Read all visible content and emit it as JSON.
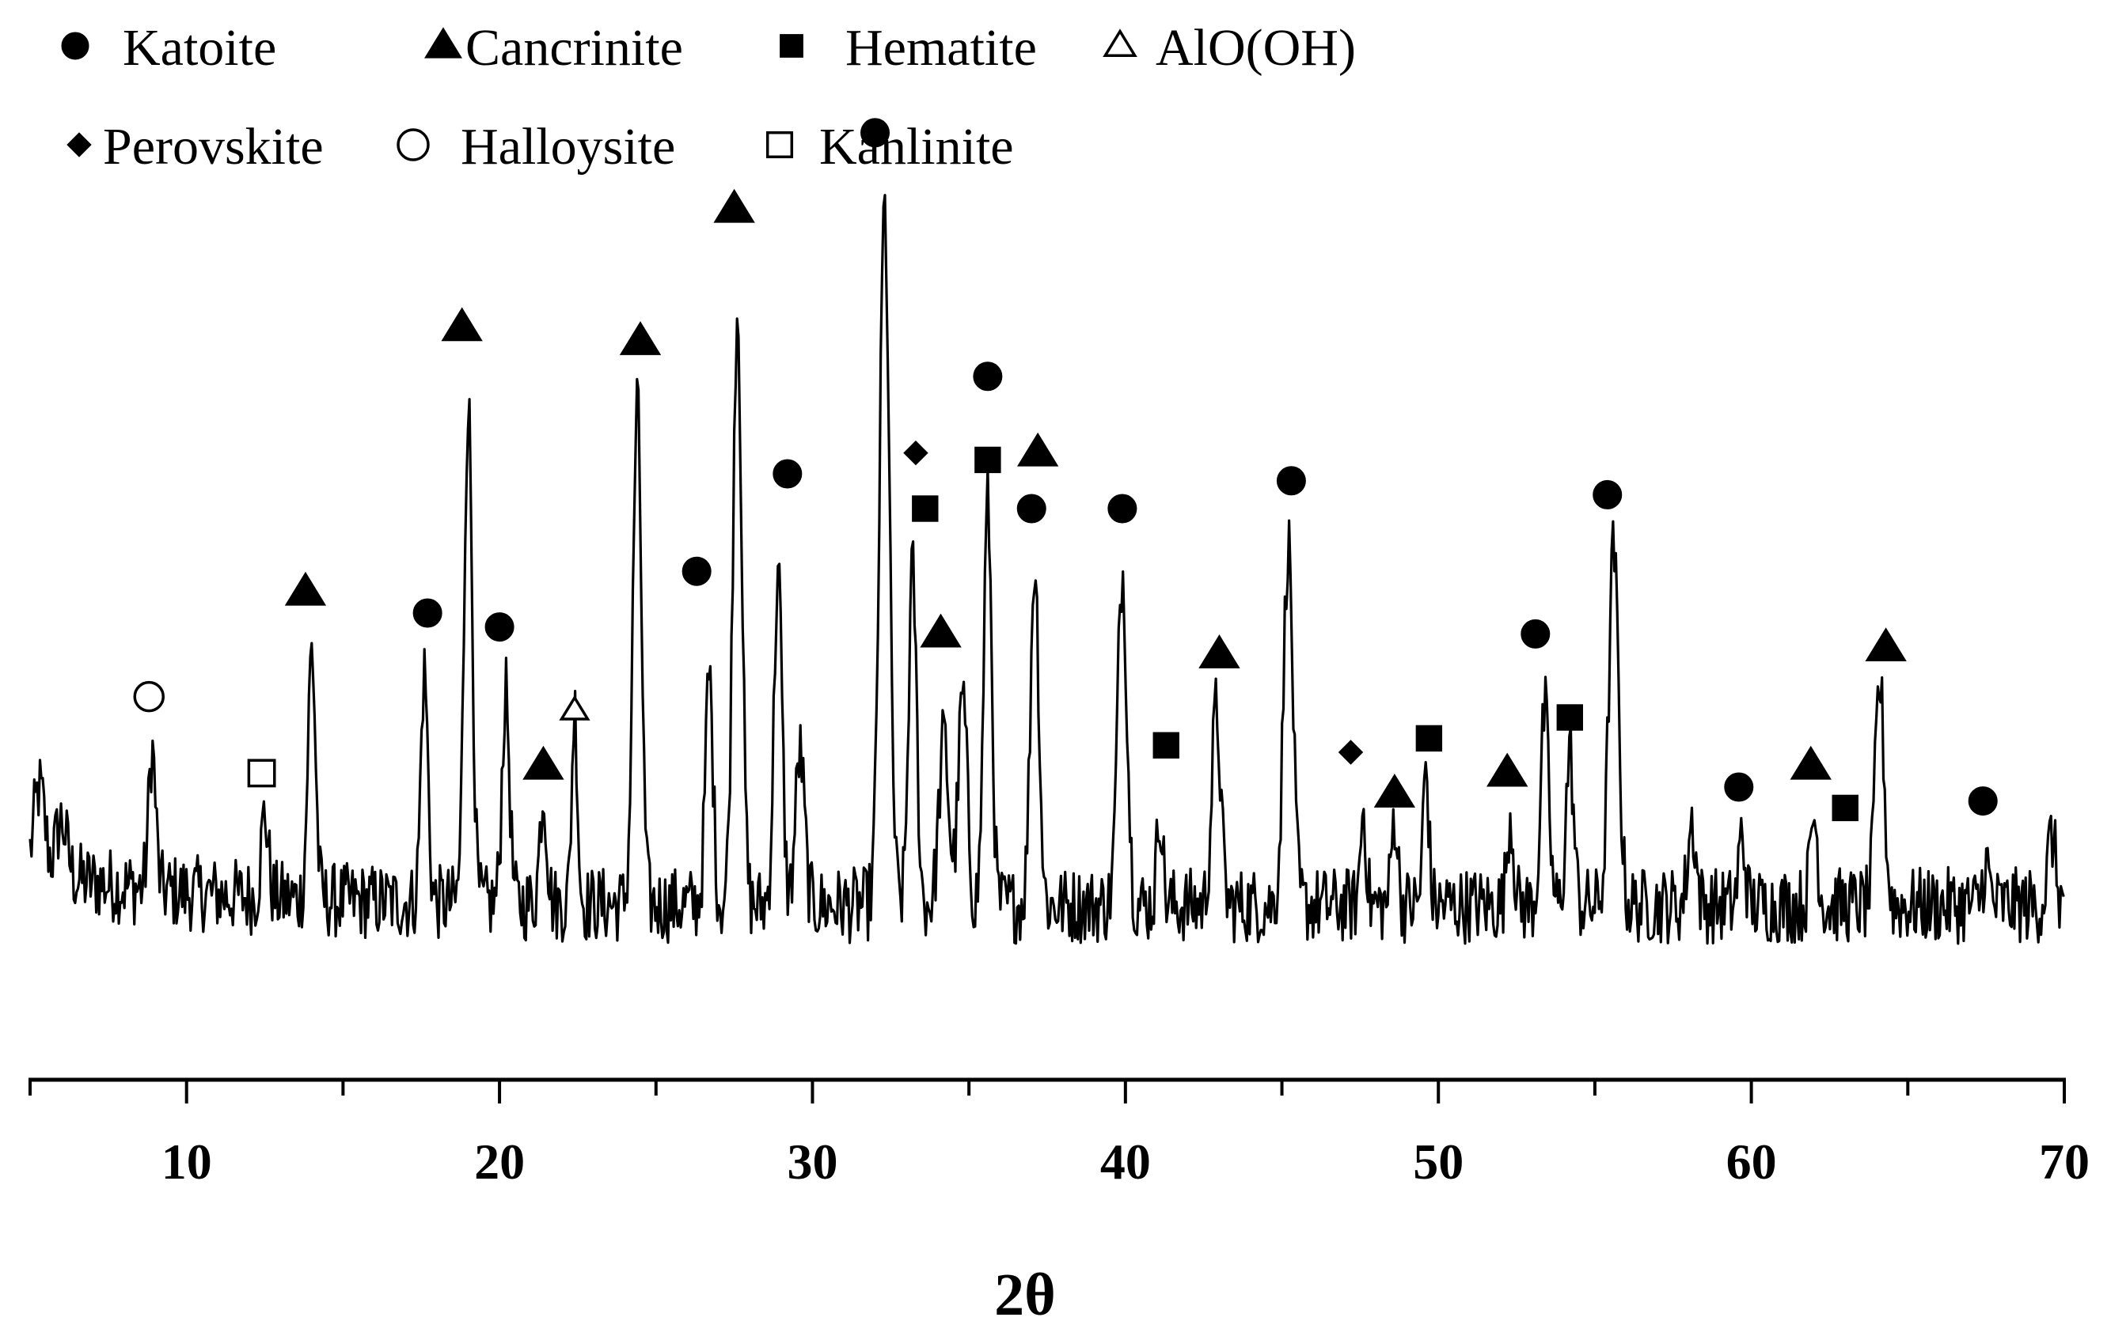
{
  "chart_data": {
    "type": "line",
    "title": "",
    "xlabel": "2θ",
    "ylabel": "",
    "xlim": [
      5,
      70
    ],
    "xticks_major": [
      10,
      20,
      30,
      40,
      50,
      60,
      70
    ],
    "xticks_minor": [
      5,
      15,
      25,
      35,
      45,
      55,
      65
    ],
    "y_axis_shown": false,
    "grid": false,
    "legend_position": "top-left",
    "legend": [
      {
        "name": "Katoite",
        "marker": "filled-circle"
      },
      {
        "name": "Cancrinite",
        "marker": "filled-triangle"
      },
      {
        "name": "Hematite",
        "marker": "filled-square"
      },
      {
        "name": "AlO(OH)",
        "marker": "open-triangle"
      },
      {
        "name": "Perovskite",
        "marker": "filled-diamond"
      },
      {
        "name": "Halloysite",
        "marker": "open-circle"
      },
      {
        "name": "Kanlinite",
        "marker": "open-square"
      }
    ],
    "baseline": 0.08,
    "noise_amplitude": 0.055,
    "peaks": [
      {
        "x": 5.3,
        "h": 0.12,
        "w": 0.25
      },
      {
        "x": 6.0,
        "h": 0.08,
        "w": 0.25
      },
      {
        "x": 8.9,
        "h": 0.2,
        "w": 0.16
      },
      {
        "x": 12.5,
        "h": 0.12,
        "w": 0.16
      },
      {
        "x": 14.0,
        "h": 0.36,
        "w": 0.17
      },
      {
        "x": 17.6,
        "h": 0.33,
        "w": 0.16
      },
      {
        "x": 19.0,
        "h": 0.72,
        "w": 0.18
      },
      {
        "x": 20.2,
        "h": 0.3,
        "w": 0.17
      },
      {
        "x": 21.4,
        "h": 0.16,
        "w": 0.16
      },
      {
        "x": 22.4,
        "h": 0.28,
        "w": 0.13
      },
      {
        "x": 24.4,
        "h": 0.72,
        "w": 0.19
      },
      {
        "x": 26.7,
        "h": 0.33,
        "w": 0.17
      },
      {
        "x": 27.6,
        "h": 0.86,
        "w": 0.2
      },
      {
        "x": 28.9,
        "h": 0.48,
        "w": 0.18
      },
      {
        "x": 29.6,
        "h": 0.22,
        "w": 0.2
      },
      {
        "x": 32.3,
        "h": 1.0,
        "w": 0.22
      },
      {
        "x": 33.2,
        "h": 0.48,
        "w": 0.18
      },
      {
        "x": 34.2,
        "h": 0.24,
        "w": 0.22
      },
      {
        "x": 34.8,
        "h": 0.3,
        "w": 0.2
      },
      {
        "x": 35.6,
        "h": 0.58,
        "w": 0.18
      },
      {
        "x": 37.1,
        "h": 0.49,
        "w": 0.19
      },
      {
        "x": 39.9,
        "h": 0.48,
        "w": 0.21
      },
      {
        "x": 41.1,
        "h": 0.14,
        "w": 0.13
      },
      {
        "x": 42.9,
        "h": 0.28,
        "w": 0.2
      },
      {
        "x": 45.2,
        "h": 0.52,
        "w": 0.21
      },
      {
        "x": 47.6,
        "h": 0.14,
        "w": 0.13
      },
      {
        "x": 48.6,
        "h": 0.13,
        "w": 0.14
      },
      {
        "x": 49.6,
        "h": 0.2,
        "w": 0.13
      },
      {
        "x": 52.3,
        "h": 0.13,
        "w": 0.15
      },
      {
        "x": 53.4,
        "h": 0.28,
        "w": 0.18
      },
      {
        "x": 54.2,
        "h": 0.22,
        "w": 0.17
      },
      {
        "x": 55.6,
        "h": 0.51,
        "w": 0.22
      },
      {
        "x": 58.1,
        "h": 0.12,
        "w": 0.18
      },
      {
        "x": 59.7,
        "h": 0.1,
        "w": 0.15
      },
      {
        "x": 62.0,
        "h": 0.13,
        "w": 0.17
      },
      {
        "x": 64.1,
        "h": 0.32,
        "w": 0.2
      },
      {
        "x": 67.5,
        "h": 0.06,
        "w": 0.15
      },
      {
        "x": 69.6,
        "h": 0.1,
        "w": 0.18
      }
    ],
    "peak_markers": [
      {
        "phase": "Halloysite",
        "x": 8.8,
        "y": 0.38
      },
      {
        "phase": "Kanlinite",
        "x": 12.4,
        "y": 0.27
      },
      {
        "phase": "Cancrinite",
        "x": 13.8,
        "y": 0.53
      },
      {
        "phase": "Katoite",
        "x": 17.7,
        "y": 0.5
      },
      {
        "phase": "Cancrinite",
        "x": 18.8,
        "y": 0.91
      },
      {
        "phase": "Katoite",
        "x": 20.0,
        "y": 0.48
      },
      {
        "phase": "Cancrinite",
        "x": 21.4,
        "y": 0.28
      },
      {
        "phase": "AlO(OH)",
        "x": 22.4,
        "y": 0.36
      },
      {
        "phase": "Cancrinite",
        "x": 24.5,
        "y": 0.89
      },
      {
        "phase": "Katoite",
        "x": 26.3,
        "y": 0.56
      },
      {
        "phase": "Cancrinite",
        "x": 27.5,
        "y": 1.08
      },
      {
        "phase": "Katoite",
        "x": 29.2,
        "y": 0.7
      },
      {
        "phase": "Katoite",
        "x": 32.0,
        "y": 1.19
      },
      {
        "phase": "Perovskite",
        "x": 33.3,
        "y": 0.73
      },
      {
        "phase": "Hematite",
        "x": 33.6,
        "y": 0.65
      },
      {
        "phase": "Cancrinite",
        "x": 34.1,
        "y": 0.47
      },
      {
        "phase": "Katoite",
        "x": 35.6,
        "y": 0.84
      },
      {
        "phase": "Hematite",
        "x": 35.6,
        "y": 0.72
      },
      {
        "phase": "Cancrinite",
        "x": 37.2,
        "y": 0.73
      },
      {
        "phase": "Katoite",
        "x": 37.0,
        "y": 0.65
      },
      {
        "phase": "Katoite",
        "x": 39.9,
        "y": 0.65
      },
      {
        "phase": "Hematite",
        "x": 41.3,
        "y": 0.31
      },
      {
        "phase": "Cancrinite",
        "x": 43.0,
        "y": 0.44
      },
      {
        "phase": "Katoite",
        "x": 45.3,
        "y": 0.69
      },
      {
        "phase": "Perovskite",
        "x": 47.2,
        "y": 0.3
      },
      {
        "phase": "Cancrinite",
        "x": 48.6,
        "y": 0.24
      },
      {
        "phase": "Hematite",
        "x": 49.7,
        "y": 0.32
      },
      {
        "phase": "Cancrinite",
        "x": 52.2,
        "y": 0.27
      },
      {
        "phase": "Katoite",
        "x": 53.1,
        "y": 0.47
      },
      {
        "phase": "Hematite",
        "x": 54.2,
        "y": 0.35
      },
      {
        "phase": "Katoite",
        "x": 55.4,
        "y": 0.67
      },
      {
        "phase": "Katoite",
        "x": 59.6,
        "y": 0.25
      },
      {
        "phase": "Cancrinite",
        "x": 61.9,
        "y": 0.28
      },
      {
        "phase": "Hematite",
        "x": 63.0,
        "y": 0.22
      },
      {
        "phase": "Cancrinite",
        "x": 64.3,
        "y": 0.45
      },
      {
        "phase": "Katoite",
        "x": 67.4,
        "y": 0.23
      }
    ]
  }
}
